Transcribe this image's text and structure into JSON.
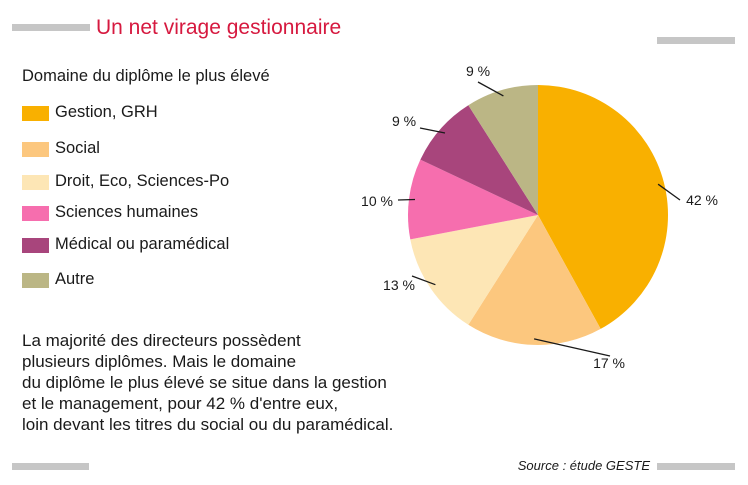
{
  "title": "Un net virage gestionnaire",
  "legend_title": "Domaine du diplôme le plus élevé",
  "legend": [
    {
      "label": "Gestion, GRH",
      "color": "#f9b000"
    },
    {
      "label": "Social",
      "color": "#fcc77e"
    },
    {
      "label": "Droit, Eco, Sciences-Po",
      "color": "#fde6b5"
    },
    {
      "label": "Sciences humaines",
      "color": "#f66eae"
    },
    {
      "label": "Médical ou paramédical",
      "color": "#a8457c"
    },
    {
      "label": "Autre",
      "color": "#bbb685"
    }
  ],
  "paragraph": [
    "La majorité des directeurs possèdent",
    "plusieurs diplômes. Mais le domaine",
    "du diplôme le plus élevé se situe dans la gestion",
    "et le management, pour 42 % d'entre eux,",
    "loin devant les titres du social ou du paramédical."
  ],
  "source": "Source : étude GESTE",
  "chart_data": {
    "type": "pie",
    "title": "Un net virage gestionnaire",
    "legend_title": "Domaine du diplôme le plus élevé",
    "categories": [
      "Gestion, GRH",
      "Social",
      "Droit, Eco, Sciences-Po",
      "Sciences humaines",
      "Médical ou paramédical",
      "Autre"
    ],
    "values": [
      42,
      17,
      13,
      10,
      9,
      9
    ],
    "labels": [
      "42 %",
      "17 %",
      "13 %",
      "10 %",
      "9 %",
      "9 %"
    ],
    "colors": [
      "#f9b000",
      "#fcc77e",
      "#fde6b5",
      "#f66eae",
      "#a8457c",
      "#bbb685"
    ],
    "legend_position": "left"
  }
}
